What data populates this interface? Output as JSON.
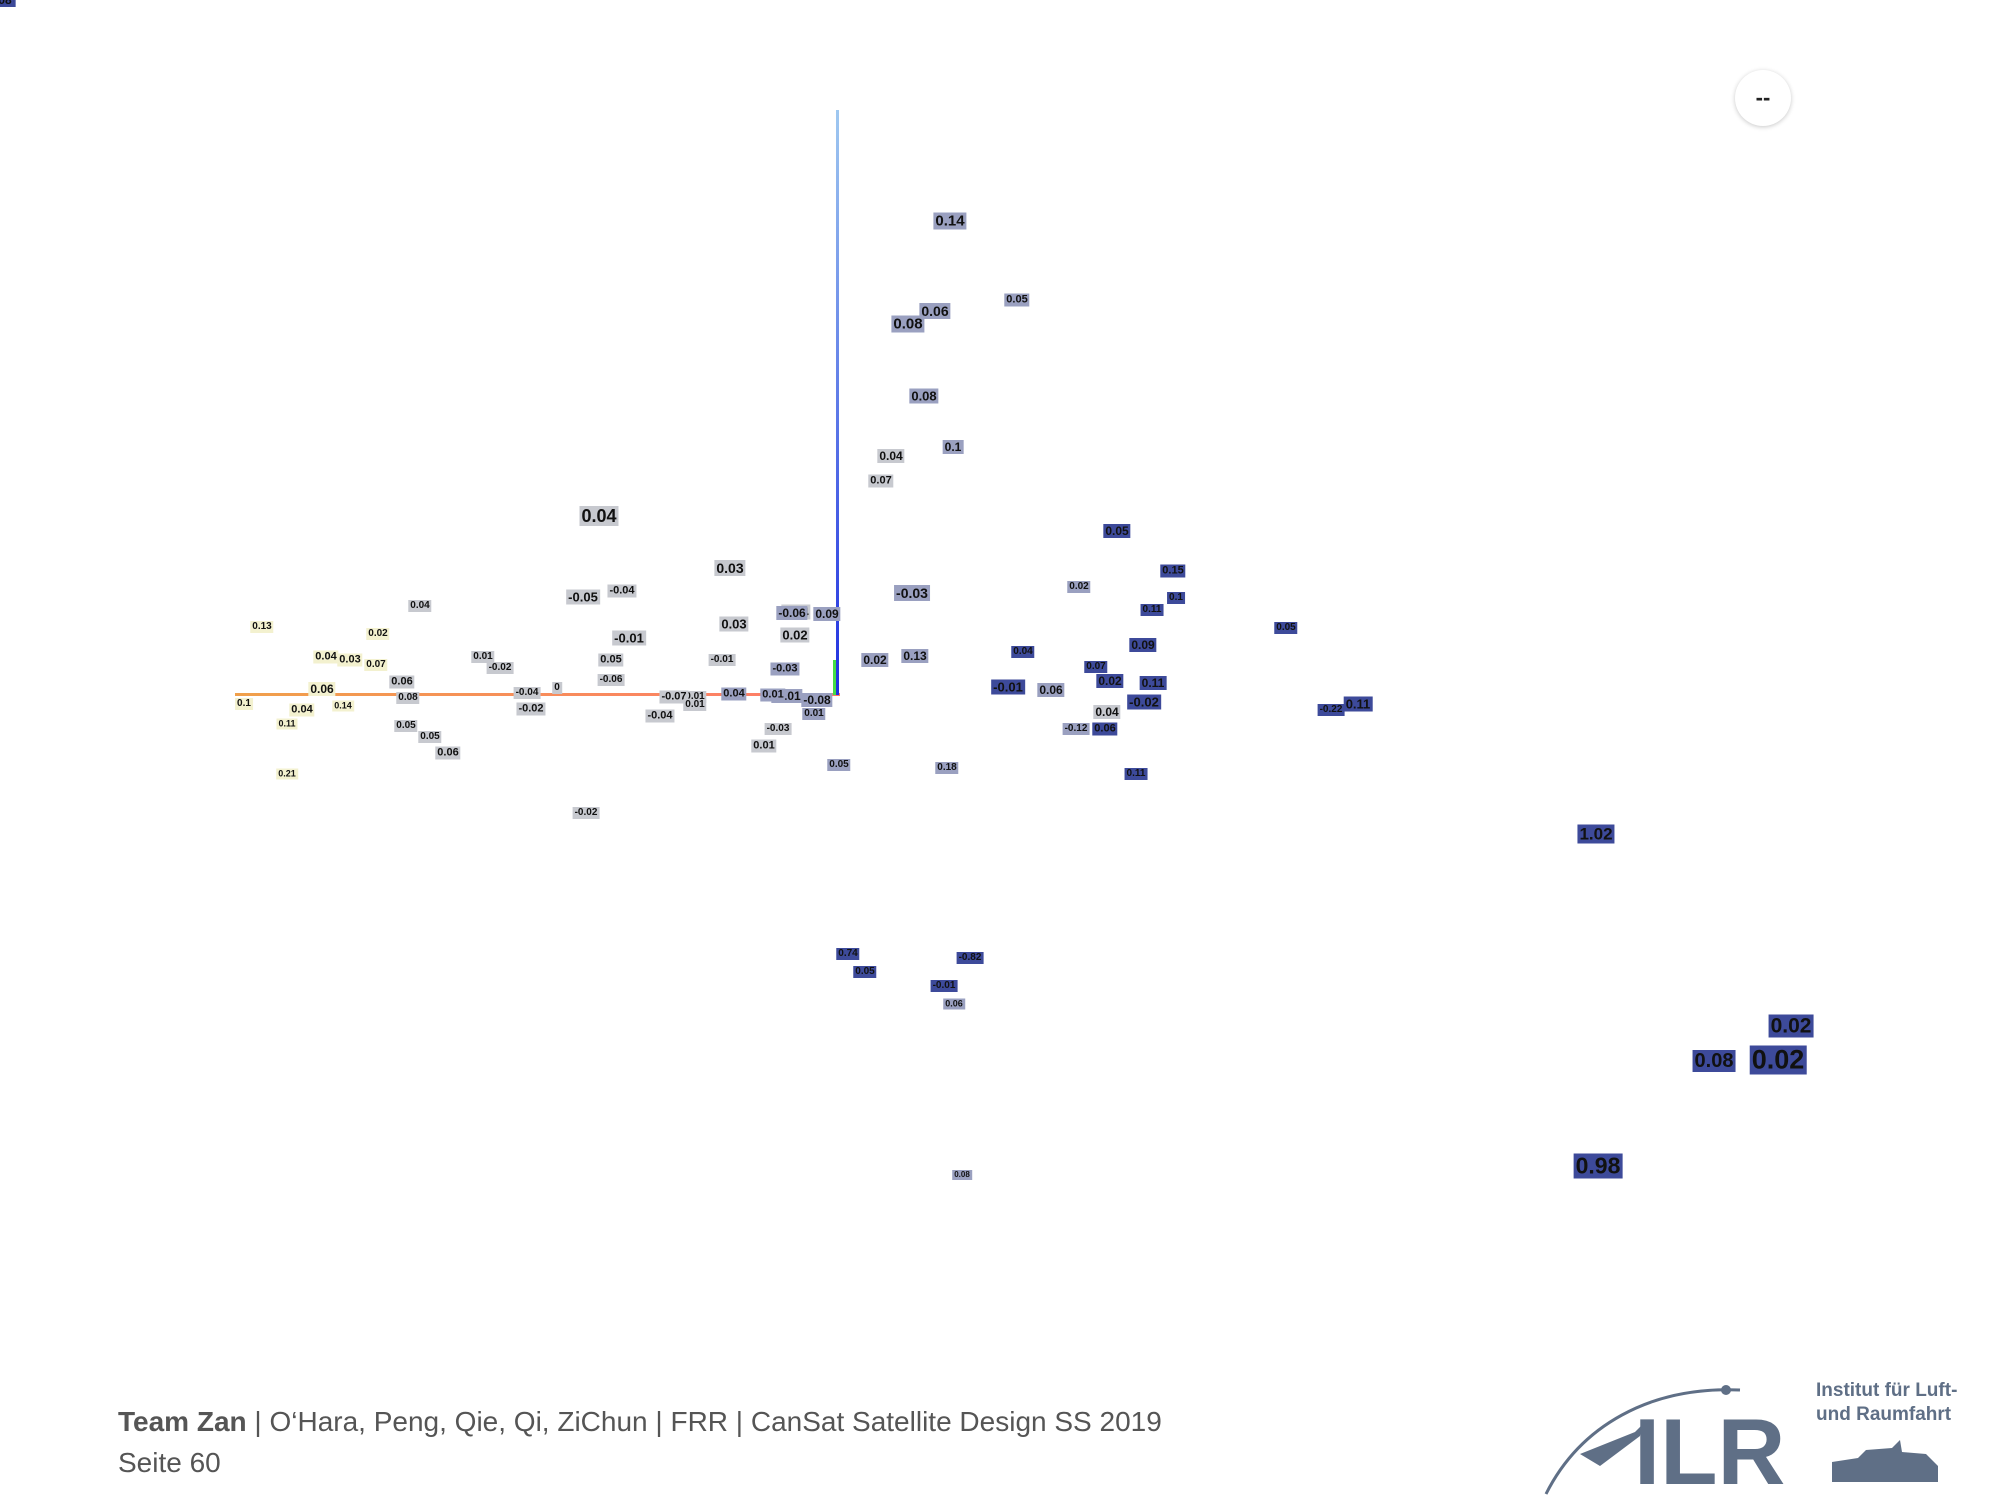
{
  "toolbar": {
    "more_button": "--"
  },
  "footer": {
    "team": "Team Zan",
    "sep1": " | ",
    "members": "O‘Hara, Peng, Qie, Qi, ZiChun",
    "sep2": " | ",
    "phase": "FRR",
    "sep3": " | ",
    "course": "CanSat Satellite Design SS 2019",
    "page": "Seite 60"
  },
  "logo": {
    "letters": "ILR",
    "line1": "Institut für Luft-",
    "line2": "und Raumfahrt"
  },
  "colors": {
    "x_axis": "#f08a4b",
    "y_axis": "#1f2fe0",
    "z_axis": "#44dd44",
    "label_yellow": "#f3f1cf",
    "label_gray": "#c7c9cf",
    "label_bluegray": "#9aa0c0",
    "label_blue": "#3d4a9a"
  },
  "labels": [
    {
      "t": "0.14",
      "c": "bgray"
    },
    {
      "t": "0.06",
      "c": "bgray"
    },
    {
      "t": "0.08",
      "c": "bgray"
    },
    {
      "t": "0.05",
      "c": "bgray"
    },
    {
      "t": "0.08",
      "c": "bgray"
    },
    {
      "t": "0.1",
      "c": "bgray"
    },
    {
      "t": "0.04",
      "c": "gray"
    },
    {
      "t": "0.07",
      "c": "gray"
    },
    {
      "t": "0.04",
      "c": "gray"
    },
    {
      "t": "0.03",
      "c": "gray"
    },
    {
      "t": "-0.05",
      "c": "gray"
    },
    {
      "t": "-0.04",
      "c": "gray"
    },
    {
      "t": "-0.03",
      "c": "bgray"
    },
    {
      "t": "0.03",
      "c": "gray"
    },
    {
      "t": "0.04",
      "c": "gray"
    },
    {
      "t": "-0.06",
      "c": "bgray"
    },
    {
      "t": "0.09",
      "c": "bgray"
    },
    {
      "t": "0.02",
      "c": "gray"
    },
    {
      "t": "-0.01",
      "c": "gray"
    },
    {
      "t": "0.13",
      "c": "yellow"
    },
    {
      "t": "0.02",
      "c": "yellow"
    },
    {
      "t": "0.04",
      "c": "gray"
    },
    {
      "t": "0.04",
      "c": "yellow"
    },
    {
      "t": "0.03",
      "c": "yellow"
    },
    {
      "t": "0.07",
      "c": "yellow"
    },
    {
      "t": "0.01",
      "c": "gray"
    },
    {
      "t": "-0.02",
      "c": "gray"
    },
    {
      "t": "0.05",
      "c": "gray"
    },
    {
      "t": "-0.01",
      "c": "gray"
    },
    {
      "t": "0.02",
      "c": "bgray"
    },
    {
      "t": "0.06",
      "c": "yellow"
    },
    {
      "t": "0.06",
      "c": "gray"
    },
    {
      "t": "-0.04",
      "c": "gray"
    },
    {
      "t": "0",
      "c": "gray"
    },
    {
      "t": "-0.06",
      "c": "gray"
    },
    {
      "t": "0.01",
      "c": "gray"
    },
    {
      "t": "-0.03",
      "c": "bgray"
    },
    {
      "t": "-0.01",
      "c": "bgray"
    },
    {
      "t": "0.1",
      "c": "yellow"
    },
    {
      "t": "0.04",
      "c": "yellow"
    },
    {
      "t": "0.08",
      "c": "gray"
    },
    {
      "t": "-0.02",
      "c": "gray"
    },
    {
      "t": "-0.07",
      "c": "gray"
    },
    {
      "t": "0.01",
      "c": "gray"
    },
    {
      "t": "0.04",
      "c": "bgray"
    },
    {
      "t": "0.01",
      "c": "bgray"
    },
    {
      "t": "-0.08",
      "c": "bgray"
    },
    {
      "t": "-0.04",
      "c": "gray"
    },
    {
      "t": "0.01",
      "c": "bgray"
    },
    {
      "t": "-0.03",
      "c": "gray"
    },
    {
      "t": "0.05",
      "c": "gray"
    },
    {
      "t": "0.05",
      "c": "gray"
    },
    {
      "t": "0.06",
      "c": "gray"
    },
    {
      "t": "0.11",
      "c": "yellow"
    },
    {
      "t": "0.14",
      "c": "yellow"
    },
    {
      "t": "0.21",
      "c": "yellow"
    },
    {
      "t": "0.01",
      "c": "gray"
    },
    {
      "t": "0.05",
      "c": "bgray"
    },
    {
      "t": "0.18",
      "c": "bgray"
    },
    {
      "t": "-0.02",
      "c": "gray"
    },
    {
      "t": "0.05",
      "c": "blue"
    },
    {
      "t": "0.15",
      "c": "blue"
    },
    {
      "t": "0.1",
      "c": "blue"
    },
    {
      "t": "0.11",
      "c": "blue"
    },
    {
      "t": "0.07",
      "c": "blue"
    },
    {
      "t": "0.09",
      "c": "blue"
    },
    {
      "t": "0.04",
      "c": "blue"
    },
    {
      "t": "-0.01",
      "c": "blue"
    },
    {
      "t": "0.02",
      "c": "blue"
    },
    {
      "t": "0.11",
      "c": "blue"
    },
    {
      "t": "-0.02",
      "c": "blue"
    },
    {
      "t": "0.06",
      "c": "blue"
    },
    {
      "t": "0.11",
      "c": "blue"
    },
    {
      "t": "0.05",
      "c": "blue"
    },
    {
      "t": "0.11",
      "c": "blue"
    },
    {
      "t": "-0.22",
      "c": "blue"
    },
    {
      "t": "1.02",
      "c": "blue"
    },
    {
      "t": "0.02",
      "c": "blue"
    },
    {
      "t": "0.08",
      "c": "blue"
    },
    {
      "t": "0.02",
      "c": "blue"
    },
    {
      "t": "0.98",
      "c": "blue"
    },
    {
      "t": "0.74",
      "c": "blue"
    },
    {
      "t": "0.05",
      "c": "blue"
    },
    {
      "t": "-0.82",
      "c": "blue"
    },
    {
      "t": "-0.01",
      "c": "blue"
    },
    {
      "t": "0.06",
      "c": "bgray"
    },
    {
      "t": "0.08",
      "c": "bgray"
    },
    {
      "t": "0.02",
      "c": "bgray"
    },
    {
      "t": "0.13",
      "c": "bgray"
    },
    {
      "t": "0.06",
      "c": "bgray"
    },
    {
      "t": "-0.12",
      "c": "bgray"
    },
    {
      "t": "0.04",
      "c": "gray"
    },
    {
      "t": "-0.02",
      "c": "bgray"
    },
    {
      "t": "-0.11",
      "c": "blue"
    },
    {
      "t": "-0.05",
      "c": "blue"
    },
    {
      "t": "0.08",
      "c": "blue"
    }
  ]
}
